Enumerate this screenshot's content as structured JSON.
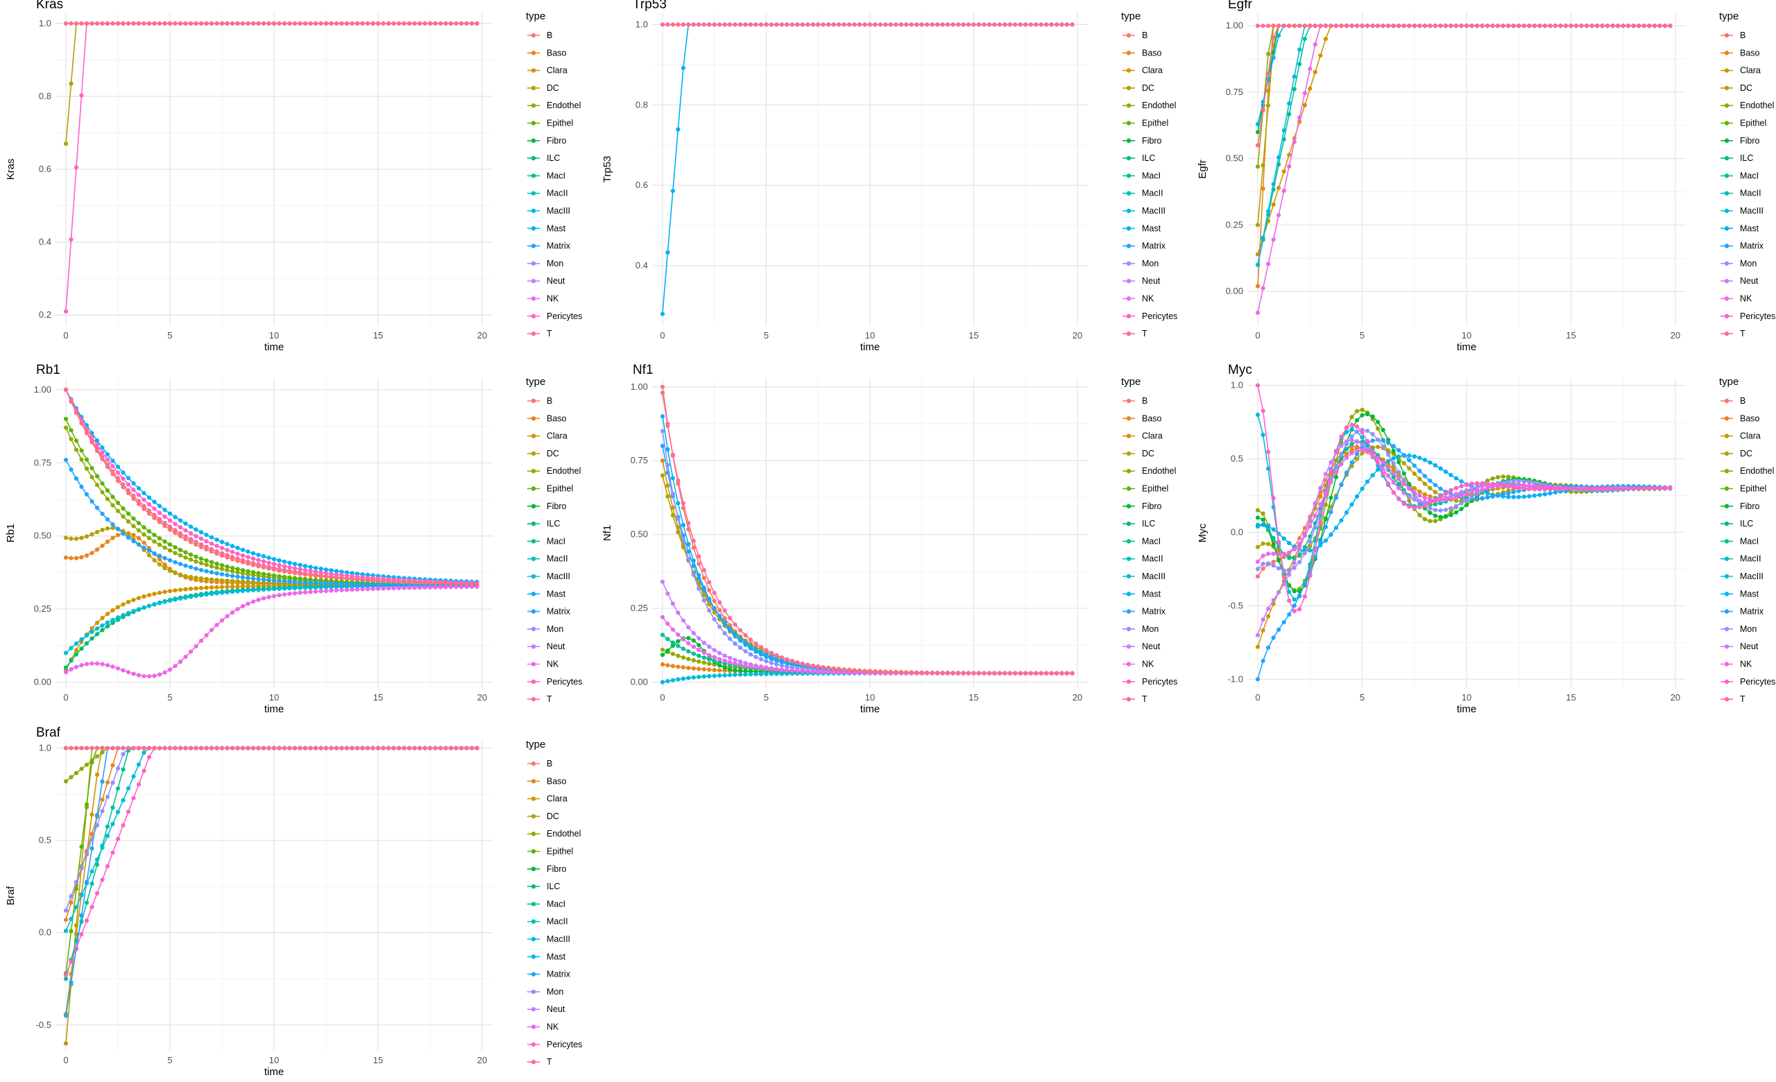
{
  "figure": {
    "legend_title": "type",
    "types": [
      "B",
      "Baso",
      "Clara",
      "DC",
      "Endothel",
      "Epithel",
      "Fibro",
      "ILC",
      "MacI",
      "MacII",
      "MacIII",
      "Mast",
      "Matrix",
      "Mon",
      "Neut",
      "NK",
      "Pericytes",
      "T"
    ],
    "colors": [
      "#F8766D",
      "#E7851E",
      "#D09400",
      "#B2A100",
      "#8EAB00",
      "#5EB300",
      "#00B938",
      "#00BD6E",
      "#00C097",
      "#00BFBB",
      "#00BBD9",
      "#00B2F3",
      "#1FA4FF",
      "#8F91FF",
      "#C77CFF",
      "#EE67EB",
      "#FF61C9",
      "#FF6C91"
    ]
  },
  "chart_data": [
    {
      "type": "line",
      "title": "Kras",
      "xlabel": "time",
      "ylabel": "Kras",
      "xlim": [
        -0.5,
        20.5
      ],
      "ylim": [
        0.17,
        1.03
      ],
      "xticks": [
        0,
        5,
        10,
        15,
        20
      ],
      "yticks": [
        0.2,
        0.4,
        0.6,
        0.8,
        1.0
      ],
      "ytick_decimals": 1,
      "grid": true,
      "legend_position": "right",
      "series": [
        {
          "name": "DC",
          "shape": "linear",
          "start": 0.67,
          "target": 1.0,
          "rate": 2.0
        },
        {
          "name": "Pericytes",
          "shape": "linear",
          "start": 0.21,
          "target": 1.0,
          "rate": 1.0
        }
      ]
    },
    {
      "type": "line",
      "title": "Trp53",
      "xlabel": "time",
      "ylabel": "Trp53",
      "xlim": [
        -0.5,
        20.5
      ],
      "ylim": [
        0.25,
        1.03
      ],
      "xticks": [
        0,
        5,
        10,
        15,
        20
      ],
      "yticks": [
        0.4,
        0.6,
        0.8,
        1.0
      ],
      "ytick_decimals": 1,
      "grid": true,
      "legend_position": "right",
      "series": [
        {
          "name": "Mast",
          "shape": "linear",
          "start": 0.28,
          "target": 1.0,
          "rate": 0.85
        }
      ]
    },
    {
      "type": "line",
      "title": "Egfr",
      "xlabel": "time",
      "ylabel": "Egfr",
      "xlim": [
        -0.5,
        20.5
      ],
      "ylim": [
        -0.13,
        1.05
      ],
      "xticks": [
        0,
        5,
        10,
        15,
        20
      ],
      "yticks": [
        0.0,
        0.25,
        0.5,
        0.75,
        1.0
      ],
      "ytick_decimals": 2,
      "grid": true,
      "legend_position": "right",
      "series": [
        {
          "name": "Baso",
          "shape": "linear",
          "start": 0.02,
          "target": 1.0,
          "rate": 1.5
        },
        {
          "name": "Clara",
          "shape": "linear",
          "start": 0.14,
          "target": 1.0,
          "rate": 0.29
        },
        {
          "name": "DC",
          "shape": "linear",
          "start": 0.25,
          "target": 1.0,
          "rate": 1.2
        },
        {
          "name": "Endothel",
          "shape": "linear",
          "start": 0.47,
          "target": 1.0,
          "rate": 1.6
        },
        {
          "name": "Fibro",
          "shape": "linear",
          "start": 0.6,
          "target": 1.0,
          "rate": 1.0
        },
        {
          "name": "MacI",
          "shape": "linear",
          "start": 0.1,
          "target": 1.0,
          "rate": 0.42
        },
        {
          "name": "MacIII",
          "shape": "linear",
          "start": 0.1,
          "target": 1.0,
          "rate": 0.45
        },
        {
          "name": "Mast",
          "shape": "linear",
          "start": 0.63,
          "target": 1.0,
          "rate": 0.9
        },
        {
          "name": "NK",
          "shape": "linear",
          "start": -0.08,
          "target": 1.0,
          "rate": 0.34
        },
        {
          "name": "T",
          "shape": "linear",
          "start": 0.55,
          "target": 1.0,
          "rate": 1.2
        }
      ]
    },
    {
      "type": "line",
      "title": "Rb1",
      "xlabel": "time",
      "ylabel": "Rb1",
      "xlim": [
        -0.5,
        20.5
      ],
      "ylim": [
        -0.02,
        1.04
      ],
      "xticks": [
        0,
        5,
        10,
        15,
        20
      ],
      "yticks": [
        0.0,
        0.25,
        0.5,
        0.75,
        1.0
      ],
      "ytick_decimals": 2,
      "grid": true,
      "legend_position": "right",
      "series": [
        {
          "name": "B",
          "shape": "decay",
          "start": 1.0,
          "target": 0.33,
          "rate": 0.25
        },
        {
          "name": "Baso",
          "shape": "bump",
          "start": 0.42,
          "target": 0.33,
          "rate": 0.28,
          "amp": 0.14,
          "mu": 3.0,
          "sigma": 1.2
        },
        {
          "name": "Clara",
          "shape": "rise",
          "start": 0.04,
          "target": 0.33,
          "rate": 0.55
        },
        {
          "name": "DC",
          "shape": "bump",
          "start": 0.48,
          "target": 0.33,
          "rate": 0.28,
          "amp": 0.12,
          "mu": 2.5,
          "sigma": 1.2
        },
        {
          "name": "Endothel",
          "shape": "decay",
          "start": 0.87,
          "target": 0.33,
          "rate": 0.3
        },
        {
          "name": "Epithel",
          "shape": "decay",
          "start": 0.9,
          "target": 0.33,
          "rate": 0.28
        },
        {
          "name": "ILC",
          "shape": "rise",
          "start": 0.05,
          "target": 0.33,
          "rate": 0.35
        },
        {
          "name": "MacIII",
          "shape": "rise",
          "start": 0.1,
          "target": 0.33,
          "rate": 0.3
        },
        {
          "name": "Mast",
          "shape": "decay",
          "start": 1.0,
          "target": 0.33,
          "rate": 0.2
        },
        {
          "name": "Matrix",
          "shape": "decay",
          "start": 0.76,
          "target": 0.33,
          "rate": 0.32
        },
        {
          "name": "NK",
          "shape": "bump",
          "start": 0.05,
          "target": 0.33,
          "rate": 0.22,
          "amp": -0.2,
          "mu": 4.5,
          "sigma": 2.0
        },
        {
          "name": "Pericytes",
          "shape": "decay",
          "start": 1.0,
          "target": 0.33,
          "rate": 0.22
        },
        {
          "name": "T",
          "shape": "decay",
          "start": 1.0,
          "target": 0.33,
          "rate": 0.24
        }
      ]
    },
    {
      "type": "line",
      "title": "Nf1",
      "xlabel": "time",
      "ylabel": "Nf1",
      "xlim": [
        -0.5,
        20.5
      ],
      "ylim": [
        -0.02,
        1.03
      ],
      "xticks": [
        0,
        5,
        10,
        15,
        20
      ],
      "yticks": [
        0.0,
        0.25,
        0.5,
        0.75,
        1.0
      ],
      "ytick_decimals": 2,
      "grid": true,
      "legend_position": "right",
      "series": [
        {
          "name": "B",
          "shape": "decay",
          "start": 1.0,
          "target": 0.03,
          "rate": 0.55
        },
        {
          "name": "Baso",
          "shape": "decay",
          "start": 0.06,
          "target": 0.03,
          "rate": 0.4
        },
        {
          "name": "Clara",
          "shape": "decay",
          "start": 0.75,
          "target": 0.03,
          "rate": 0.5
        },
        {
          "name": "DC",
          "shape": "decay",
          "start": 0.7,
          "target": 0.03,
          "rate": 0.45
        },
        {
          "name": "Endothel",
          "shape": "decay",
          "start": 0.11,
          "target": 0.03,
          "rate": 0.4
        },
        {
          "name": "Fibro",
          "shape": "bump",
          "start": 0.06,
          "target": 0.03,
          "rate": 0.35,
          "amp": 0.1,
          "mu": 1.2,
          "sigma": 0.8
        },
        {
          "name": "MacI",
          "shape": "decay",
          "start": 0.16,
          "target": 0.03,
          "rate": 0.45
        },
        {
          "name": "MacIII",
          "shape": "rise",
          "start": 0.0,
          "target": 0.03,
          "rate": 0.5
        },
        {
          "name": "Mast",
          "shape": "decay",
          "start": 0.9,
          "target": 0.03,
          "rate": 0.55
        },
        {
          "name": "Matrix",
          "shape": "decay",
          "start": 0.8,
          "target": 0.03,
          "rate": 0.5
        },
        {
          "name": "Mon",
          "shape": "decay",
          "start": 0.85,
          "target": 0.03,
          "rate": 0.6
        },
        {
          "name": "Neut",
          "shape": "decay",
          "start": 0.34,
          "target": 0.03,
          "rate": 0.55
        },
        {
          "name": "NK",
          "shape": "decay",
          "start": 0.22,
          "target": 0.03,
          "rate": 0.5
        },
        {
          "name": "T",
          "shape": "decay",
          "start": 0.98,
          "target": 0.03,
          "rate": 0.5
        }
      ]
    },
    {
      "type": "line",
      "title": "Myc",
      "xlabel": "time",
      "ylabel": "Myc",
      "xlim": [
        -0.5,
        20.5
      ],
      "ylim": [
        -1.06,
        1.05
      ],
      "xticks": [
        0,
        5,
        10,
        15,
        20
      ],
      "yticks": [
        -1.0,
        -0.5,
        0.0,
        0.5,
        1.0
      ],
      "ytick_decimals": 1,
      "grid": true,
      "legend_position": "right",
      "series": [
        {
          "name": "B",
          "shape": "wave",
          "start": -0.3,
          "target": 0.3,
          "rate": 0.45,
          "amp": -0.5,
          "omega": 0.9
        },
        {
          "name": "Clara",
          "shape": "wave",
          "start": -0.78,
          "target": 0.3,
          "rate": 0.45,
          "amp": -0.5,
          "omega": 0.8
        },
        {
          "name": "DC",
          "shape": "wave",
          "start": -0.1,
          "target": 0.3,
          "rate": 0.4,
          "amp": -0.5,
          "omega": 0.75
        },
        {
          "name": "Endothel",
          "shape": "wave",
          "start": 0.15,
          "target": 0.3,
          "rate": 0.4,
          "amp": -0.8,
          "omega": 0.9
        },
        {
          "name": "Fibro",
          "shape": "wave",
          "start": 0.1,
          "target": 0.3,
          "rate": 0.4,
          "amp": -0.8,
          "omega": 0.85
        },
        {
          "name": "MacI",
          "shape": "wave",
          "start": 0.05,
          "target": 0.3,
          "rate": 0.45,
          "amp": -0.6,
          "omega": 0.9
        },
        {
          "name": "MacIII",
          "shape": "wave",
          "start": 0.8,
          "target": 0.3,
          "rate": 0.55,
          "amp": -1.1,
          "omega": 1.0
        },
        {
          "name": "Mast",
          "shape": "wave",
          "start": 0.04,
          "target": 0.3,
          "rate": 0.35,
          "amp": -0.4,
          "omega": 0.6
        },
        {
          "name": "Matrix",
          "shape": "wave",
          "start": -1.0,
          "target": 0.3,
          "rate": 0.45,
          "amp": -0.8,
          "omega": 0.7
        },
        {
          "name": "Mon",
          "shape": "wave",
          "start": -0.25,
          "target": 0.3,
          "rate": 0.4,
          "amp": -0.6,
          "omega": 0.85
        },
        {
          "name": "Neut",
          "shape": "wave",
          "start": -0.7,
          "target": 0.3,
          "rate": 0.5,
          "amp": -0.7,
          "omega": 0.9
        },
        {
          "name": "NK",
          "shape": "wave",
          "start": -0.2,
          "target": 0.3,
          "rate": 0.45,
          "amp": -0.5,
          "omega": 0.85
        },
        {
          "name": "Pericytes",
          "shape": "wave",
          "start": 1.0,
          "target": 0.3,
          "rate": 0.55,
          "amp": -1.2,
          "omega": 1.0
        }
      ]
    },
    {
      "type": "line",
      "title": "Braf",
      "xlabel": "time",
      "ylabel": "Braf",
      "xlim": [
        -0.5,
        20.5
      ],
      "ylim": [
        -0.64,
        1.04
      ],
      "xticks": [
        0,
        5,
        10,
        15,
        20
      ],
      "yticks": [
        -0.5,
        0.0,
        0.5,
        1.0
      ],
      "ytick_decimals": 1,
      "grid": true,
      "legend_position": "right",
      "series": [
        {
          "name": "Baso",
          "shape": "linear",
          "start": 0.07,
          "target": 1.0,
          "rate": 0.4
        },
        {
          "name": "Clara",
          "shape": "linear",
          "start": -0.44,
          "target": 1.0,
          "rate": 0.6
        },
        {
          "name": "DC",
          "shape": "linear",
          "start": -0.6,
          "target": 1.0,
          "rate": 0.8
        },
        {
          "name": "Endothel",
          "shape": "linear",
          "start": 0.82,
          "target": 1.0,
          "rate": 0.5
        },
        {
          "name": "Epithel",
          "shape": "linear",
          "start": -0.22,
          "target": 1.0,
          "rate": 0.75
        },
        {
          "name": "Fibro",
          "shape": "linear",
          "start": 1.0,
          "target": 1.0,
          "rate": 1.0
        },
        {
          "name": "MacI",
          "shape": "linear",
          "start": -0.25,
          "target": 1.0,
          "rate": 0.33
        },
        {
          "name": "MacIII",
          "shape": "linear",
          "start": 0.01,
          "target": 1.0,
          "rate": 0.26
        },
        {
          "name": "Matrix",
          "shape": "linear",
          "start": -0.45,
          "target": 1.0,
          "rate": 0.5
        },
        {
          "name": "Mon",
          "shape": "linear",
          "start": 0.12,
          "target": 1.0,
          "rate": 0.35
        },
        {
          "name": "Pericytes",
          "shape": "linear",
          "start": -0.23,
          "target": 1.0,
          "rate": 0.24
        }
      ]
    }
  ]
}
